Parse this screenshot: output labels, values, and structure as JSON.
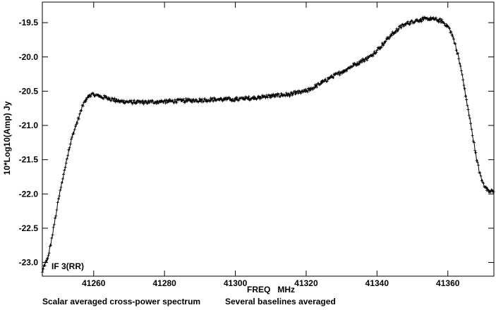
{
  "chart_data": {
    "type": "line",
    "title": "",
    "xlabel": "FREQ   MHz",
    "ylabel": "10*Log10(Amp) Jy",
    "annotation": "IF 3(RR)",
    "captions": {
      "left": "Scalar averaged cross-power spectrum",
      "right": "Several baselines averaged"
    },
    "xlim": [
      41245.5,
      41373
    ],
    "ylim": [
      -23.2,
      -19.2
    ],
    "x_ticks": [
      41260,
      41280,
      41300,
      41320,
      41340,
      41360
    ],
    "y_ticks": [
      -19.5,
      -20.0,
      -20.5,
      -21.0,
      -21.5,
      -22.0,
      -22.5,
      -23.0
    ],
    "x_tick_labels": [
      "41260",
      "41280",
      "41300",
      "41320",
      "41340",
      "41360"
    ],
    "y_tick_labels": [
      "-19.5",
      "-20.0",
      "-20.5",
      "-21.0",
      "-21.5",
      "-22.0",
      "-22.5",
      "-23.0"
    ],
    "grid": false,
    "marker": "plus",
    "series": [
      {
        "name": "",
        "x": [
          41245.5,
          41246,
          41247,
          41248,
          41249,
          41250,
          41251,
          41252,
          41253,
          41254,
          41255,
          41256,
          41257,
          41258,
          41259,
          41260,
          41262,
          41264,
          41266,
          41268,
          41270,
          41275,
          41280,
          41285,
          41290,
          41295,
          41300,
          41305,
          41310,
          41315,
          41320,
          41323,
          41326,
          41330,
          41334,
          41338,
          41341,
          41344,
          41347,
          41350,
          41353,
          41356,
          41358,
          41360,
          41361,
          41362,
          41363,
          41364,
          41365,
          41366,
          41367,
          41368,
          41369,
          41370,
          41371,
          41372,
          41373
        ],
        "y": [
          -23.15,
          -23.05,
          -22.95,
          -22.7,
          -22.4,
          -22.1,
          -21.85,
          -21.6,
          -21.35,
          -21.15,
          -21.0,
          -20.85,
          -20.7,
          -20.6,
          -20.55,
          -20.55,
          -20.58,
          -20.6,
          -20.63,
          -20.65,
          -20.66,
          -20.66,
          -20.65,
          -20.64,
          -20.63,
          -20.62,
          -20.62,
          -20.6,
          -20.57,
          -20.55,
          -20.5,
          -20.42,
          -20.33,
          -20.22,
          -20.1,
          -20.0,
          -19.85,
          -19.68,
          -19.55,
          -19.48,
          -19.45,
          -19.45,
          -19.47,
          -19.55,
          -19.65,
          -19.8,
          -20.0,
          -20.25,
          -20.55,
          -20.85,
          -21.15,
          -21.45,
          -21.7,
          -21.85,
          -21.92,
          -21.95,
          -21.97
        ]
      }
    ]
  }
}
